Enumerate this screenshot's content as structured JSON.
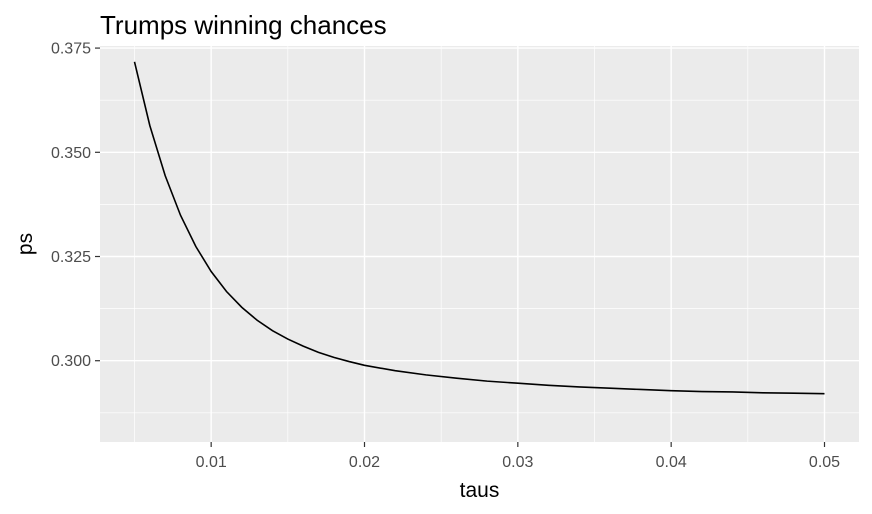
{
  "chart_data": {
    "type": "line",
    "title": "Trumps winning chances",
    "xlabel": "taus",
    "ylabel": "ps",
    "xlim": [
      0.00275,
      0.05225
    ],
    "ylim": [
      0.2805,
      0.3755
    ],
    "x_ticks": [
      0.01,
      0.02,
      0.03,
      0.04,
      0.05
    ],
    "x_tick_labels": [
      "0.01",
      "0.02",
      "0.03",
      "0.04",
      "0.05"
    ],
    "y_ticks": [
      0.3,
      0.325,
      0.35,
      0.375
    ],
    "y_tick_labels": [
      "0.300",
      "0.325",
      "0.350",
      "0.375"
    ],
    "grid": true,
    "series": [
      {
        "color": "#000000",
        "x": [
          0.005,
          0.006,
          0.007,
          0.008,
          0.009,
          0.01,
          0.011,
          0.012,
          0.013,
          0.014,
          0.015,
          0.016,
          0.017,
          0.018,
          0.019,
          0.02,
          0.022,
          0.024,
          0.026,
          0.028,
          0.03,
          0.032,
          0.034,
          0.036,
          0.038,
          0.04,
          0.042,
          0.044,
          0.046,
          0.048,
          0.05
        ],
        "y": [
          0.3717,
          0.3564,
          0.3444,
          0.3349,
          0.3274,
          0.3214,
          0.3166,
          0.3128,
          0.3097,
          0.3072,
          0.3052,
          0.3035,
          0.302,
          0.3008,
          0.2998,
          0.2989,
          0.2976,
          0.2966,
          0.2958,
          0.2951,
          0.2946,
          0.2941,
          0.2937,
          0.2934,
          0.2931,
          0.2928,
          0.2926,
          0.2925,
          0.2923,
          0.2922,
          0.2921
        ]
      }
    ]
  }
}
